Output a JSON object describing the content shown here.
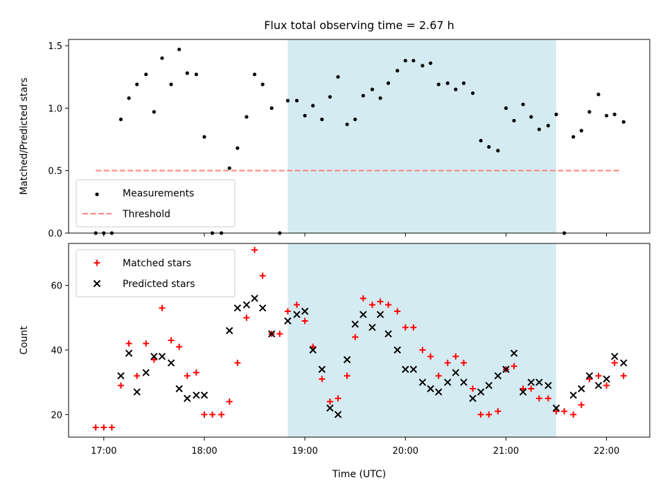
{
  "chart_data": {
    "type": "scatter",
    "title": "Flux total observing time = 2.67 h",
    "xlabel": "Time (UTC)",
    "xlim": [
      16.65,
      22.43
    ],
    "xticks": [
      17,
      18,
      19,
      20,
      21,
      22
    ],
    "xtick_labels": [
      "17:00",
      "18:00",
      "19:00",
      "20:00",
      "21:00",
      "22:00"
    ],
    "shaded_interval": {
      "start": 18.83,
      "end": 21.5,
      "color": "#d4ebf1"
    },
    "panels": [
      {
        "ylabel": "Matched/Predicted stars",
        "ylim": [
          0,
          1.55
        ],
        "yticks": [
          0.0,
          0.5,
          1.0,
          1.5
        ],
        "ytick_labels": [
          "0.0",
          "0.5",
          "1.0",
          "1.5"
        ],
        "legend_position": "lower-left",
        "threshold": {
          "name": "Threshold",
          "value": 0.5,
          "x_range": [
            16.92,
            22.13
          ],
          "color": "#ff8080"
        },
        "series": [
          {
            "name": "Measurements",
            "marker": "dot",
            "color": "#000000",
            "points": [
              [
                16.92,
                0.0
              ],
              [
                17.0,
                0.0
              ],
              [
                17.08,
                0.0
              ],
              [
                17.17,
                0.91
              ],
              [
                17.25,
                1.08
              ],
              [
                17.33,
                1.19
              ],
              [
                17.42,
                1.27
              ],
              [
                17.5,
                0.97
              ],
              [
                17.58,
                1.4
              ],
              [
                17.67,
                1.19
              ],
              [
                17.75,
                1.47
              ],
              [
                17.83,
                1.28
              ],
              [
                17.92,
                1.27
              ],
              [
                18.0,
                0.77
              ],
              [
                18.08,
                0.0
              ],
              [
                18.17,
                0.0
              ],
              [
                18.25,
                0.52
              ],
              [
                18.33,
                0.68
              ],
              [
                18.42,
                0.93
              ],
              [
                18.5,
                1.27
              ],
              [
                18.58,
                1.19
              ],
              [
                18.67,
                1.0
              ],
              [
                18.75,
                0.0
              ],
              [
                18.83,
                1.06
              ],
              [
                18.92,
                1.06
              ],
              [
                19.0,
                0.94
              ],
              [
                19.08,
                1.02
              ],
              [
                19.17,
                0.91
              ],
              [
                19.25,
                1.09
              ],
              [
                19.33,
                1.25
              ],
              [
                19.42,
                0.87
              ],
              [
                19.5,
                0.91
              ],
              [
                19.58,
                1.1
              ],
              [
                19.67,
                1.15
              ],
              [
                19.75,
                1.08
              ],
              [
                19.83,
                1.2
              ],
              [
                19.92,
                1.3
              ],
              [
                20.0,
                1.38
              ],
              [
                20.08,
                1.38
              ],
              [
                20.17,
                1.34
              ],
              [
                20.25,
                1.36
              ],
              [
                20.33,
                1.19
              ],
              [
                20.42,
                1.2
              ],
              [
                20.5,
                1.15
              ],
              [
                20.58,
                1.2
              ],
              [
                20.67,
                1.12
              ],
              [
                20.75,
                0.74
              ],
              [
                20.83,
                0.69
              ],
              [
                20.92,
                0.66
              ],
              [
                21.0,
                1.0
              ],
              [
                21.08,
                0.9
              ],
              [
                21.17,
                1.03
              ],
              [
                21.25,
                0.93
              ],
              [
                21.33,
                0.83
              ],
              [
                21.42,
                0.86
              ],
              [
                21.5,
                0.95
              ],
              [
                21.58,
                0.0
              ],
              [
                21.67,
                0.77
              ],
              [
                21.75,
                0.82
              ],
              [
                21.83,
                0.97
              ],
              [
                21.92,
                1.11
              ],
              [
                22.0,
                0.94
              ],
              [
                22.08,
                0.95
              ],
              [
                22.17,
                0.89
              ]
            ]
          }
        ]
      },
      {
        "ylabel": "Count",
        "ylim": [
          13,
          73
        ],
        "yticks": [
          20,
          40,
          60
        ],
        "ytick_labels": [
          "20",
          "40",
          "60"
        ],
        "legend_position": "upper-left",
        "series": [
          {
            "name": "Matched stars",
            "marker": "plus",
            "color": "#ff0000",
            "points": [
              [
                16.92,
                16
              ],
              [
                17.0,
                16
              ],
              [
                17.08,
                16
              ],
              [
                17.17,
                29
              ],
              [
                17.25,
                42
              ],
              [
                17.33,
                32
              ],
              [
                17.42,
                42
              ],
              [
                17.5,
                37
              ],
              [
                17.58,
                53
              ],
              [
                17.67,
                43
              ],
              [
                17.75,
                41
              ],
              [
                17.83,
                32
              ],
              [
                17.92,
                33
              ],
              [
                18.0,
                20
              ],
              [
                18.08,
                20
              ],
              [
                18.17,
                20
              ],
              [
                18.25,
                24
              ],
              [
                18.33,
                36
              ],
              [
                18.42,
                50
              ],
              [
                18.5,
                71
              ],
              [
                18.58,
                63
              ],
              [
                18.67,
                45
              ],
              [
                18.75,
                45
              ],
              [
                18.83,
                52
              ],
              [
                18.92,
                54
              ],
              [
                19.0,
                49
              ],
              [
                19.08,
                41
              ],
              [
                19.17,
                31
              ],
              [
                19.25,
                24
              ],
              [
                19.33,
                25
              ],
              [
                19.42,
                32
              ],
              [
                19.5,
                44
              ],
              [
                19.58,
                56
              ],
              [
                19.67,
                54
              ],
              [
                19.75,
                55
              ],
              [
                19.83,
                54
              ],
              [
                19.92,
                52
              ],
              [
                20.0,
                47
              ],
              [
                20.08,
                47
              ],
              [
                20.17,
                40
              ],
              [
                20.25,
                38
              ],
              [
                20.33,
                32
              ],
              [
                20.42,
                36
              ],
              [
                20.5,
                38
              ],
              [
                20.58,
                36
              ],
              [
                20.67,
                28
              ],
              [
                20.75,
                20
              ],
              [
                20.83,
                20
              ],
              [
                20.92,
                21
              ],
              [
                21.0,
                34
              ],
              [
                21.08,
                35
              ],
              [
                21.17,
                28
              ],
              [
                21.25,
                28
              ],
              [
                21.33,
                25
              ],
              [
                21.42,
                25
              ],
              [
                21.5,
                21
              ],
              [
                21.58,
                21
              ],
              [
                21.67,
                20
              ],
              [
                21.75,
                23
              ],
              [
                21.83,
                31
              ],
              [
                21.92,
                32
              ],
              [
                22.0,
                29
              ],
              [
                22.08,
                36
              ],
              [
                22.17,
                32
              ]
            ]
          },
          {
            "name": "Predicted stars",
            "marker": "x",
            "color": "#000000",
            "points": [
              [
                17.17,
                32
              ],
              [
                17.25,
                39
              ],
              [
                17.33,
                27
              ],
              [
                17.42,
                33
              ],
              [
                17.5,
                38
              ],
              [
                17.58,
                38
              ],
              [
                17.67,
                36
              ],
              [
                17.75,
                28
              ],
              [
                17.83,
                25
              ],
              [
                17.92,
                26
              ],
              [
                18.0,
                26
              ],
              [
                18.25,
                46
              ],
              [
                18.33,
                53
              ],
              [
                18.42,
                54
              ],
              [
                18.5,
                56
              ],
              [
                18.58,
                53
              ],
              [
                18.67,
                45
              ],
              [
                18.83,
                49
              ],
              [
                18.92,
                51
              ],
              [
                19.0,
                52
              ],
              [
                19.08,
                40
              ],
              [
                19.17,
                34
              ],
              [
                19.25,
                22
              ],
              [
                19.33,
                20
              ],
              [
                19.42,
                37
              ],
              [
                19.5,
                48
              ],
              [
                19.58,
                51
              ],
              [
                19.67,
                47
              ],
              [
                19.75,
                51
              ],
              [
                19.83,
                45
              ],
              [
                19.92,
                40
              ],
              [
                20.0,
                34
              ],
              [
                20.08,
                34
              ],
              [
                20.17,
                30
              ],
              [
                20.25,
                28
              ],
              [
                20.33,
                27
              ],
              [
                20.42,
                30
              ],
              [
                20.5,
                33
              ],
              [
                20.58,
                30
              ],
              [
                20.67,
                25
              ],
              [
                20.75,
                27
              ],
              [
                20.83,
                29
              ],
              [
                20.92,
                32
              ],
              [
                21.0,
                34
              ],
              [
                21.08,
                39
              ],
              [
                21.17,
                27
              ],
              [
                21.25,
                30
              ],
              [
                21.33,
                30
              ],
              [
                21.42,
                29
              ],
              [
                21.5,
                22
              ],
              [
                21.67,
                26
              ],
              [
                21.75,
                28
              ],
              [
                21.83,
                32
              ],
              [
                21.92,
                29
              ],
              [
                22.0,
                31
              ],
              [
                22.08,
                38
              ],
              [
                22.17,
                36
              ]
            ]
          }
        ]
      }
    ]
  }
}
